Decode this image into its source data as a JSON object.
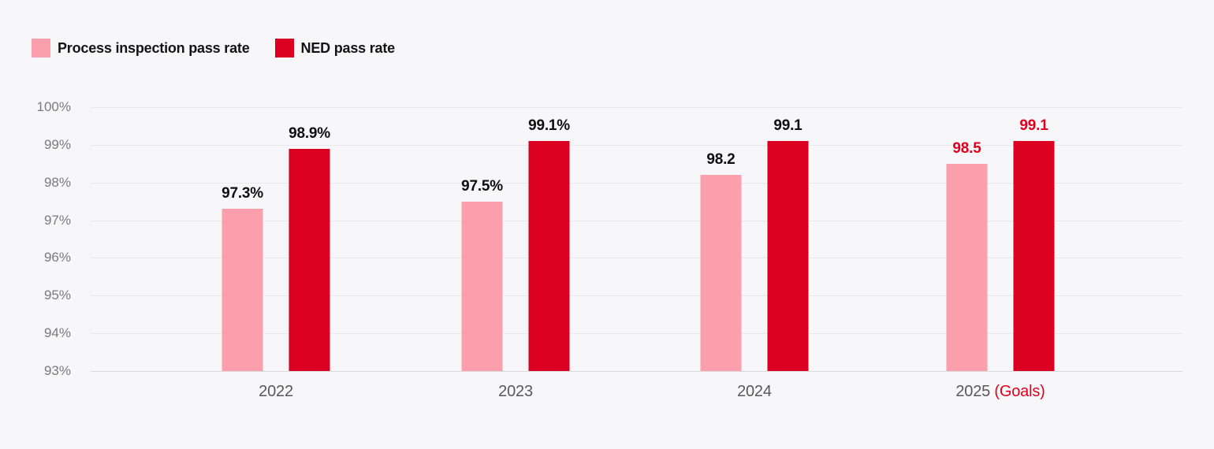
{
  "legend": {
    "items": [
      {
        "label": "Process inspection pass rate",
        "color": "#fc9fac"
      },
      {
        "label": "NED pass rate",
        "color": "#db0020"
      }
    ]
  },
  "chart_data": {
    "type": "bar",
    "title": "",
    "categories": [
      {
        "label": "2022",
        "suffix": ""
      },
      {
        "label": "2023",
        "suffix": ""
      },
      {
        "label": "2024",
        "suffix": ""
      },
      {
        "label": "2025",
        "suffix": " (Goals)"
      }
    ],
    "series": [
      {
        "name": "Process inspection pass rate",
        "color": "#fc9fac",
        "values": [
          97.3,
          97.5,
          98.2,
          98.5
        ],
        "value_labels": [
          "97.3%",
          "97.5%",
          "98.2",
          "98.5"
        ]
      },
      {
        "name": "NED pass rate",
        "color": "#db0020",
        "values": [
          98.9,
          99.1,
          99.1,
          99.1
        ],
        "value_labels": [
          "98.9%",
          "99.1%",
          "99.1",
          "99.1"
        ]
      }
    ],
    "ylim": [
      93,
      100
    ],
    "yticks": [
      "100%",
      "99%",
      "98%",
      "97%",
      "96%",
      "95%",
      "94%",
      "93%"
    ],
    "grid": true,
    "legend_position": "top-left",
    "goal_group_index": 3,
    "goal_label_color": "#e0001e",
    "xlabel": "",
    "ylabel": ""
  }
}
